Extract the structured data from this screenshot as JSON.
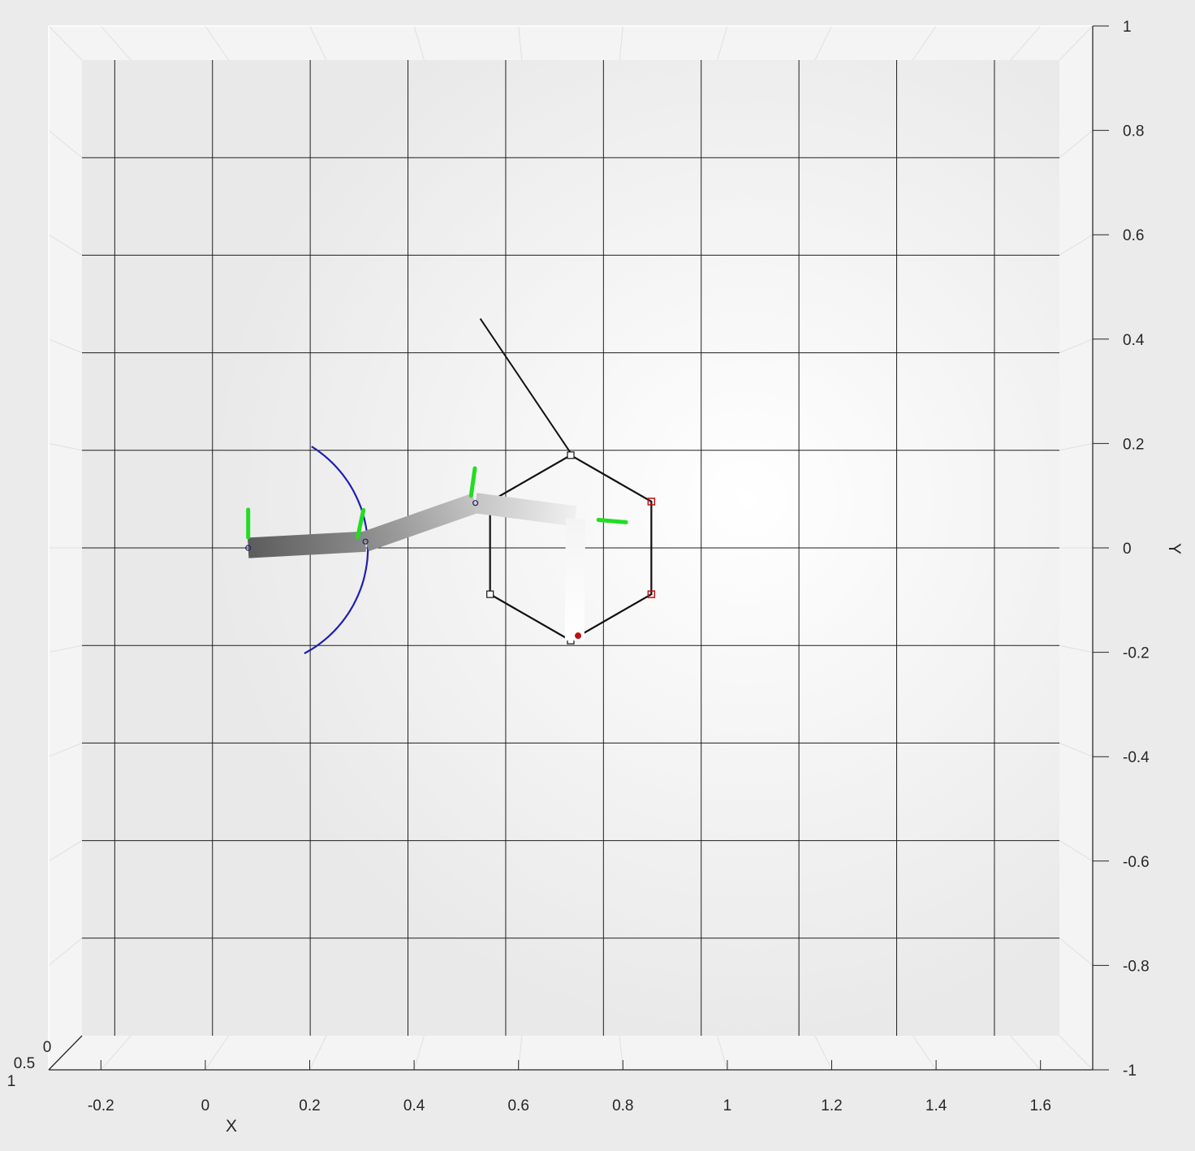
{
  "chart_data": {
    "type": "scatter",
    "title": "",
    "xlabel": "X",
    "ylabel": "Y",
    "xlim": [
      -0.3,
      1.7
    ],
    "ylim": [
      -1,
      1
    ],
    "zlim": [
      0,
      1
    ],
    "grid": true,
    "legend": "none",
    "x_ticks": [
      -0.2,
      0,
      0.2,
      0.4,
      0.6,
      0.8,
      1,
      1.2,
      1.4,
      1.6
    ],
    "x_tick_labels": [
      "-0.2",
      "0",
      "0.2",
      "0.4",
      "0.6",
      "0.8",
      "1",
      "1.2",
      "1.4",
      "1.6"
    ],
    "y_ticks": [
      1,
      0.8,
      0.6,
      0.4,
      0.2,
      0,
      -0.2,
      -0.4,
      -0.6,
      -0.8,
      -1
    ],
    "y_tick_labels": [
      "1",
      "0.8",
      "0.6",
      "0.4",
      "0.2",
      "0",
      "-0.2",
      "-0.4",
      "-0.6",
      "-0.8",
      "-1"
    ],
    "z_tick_labels": [
      "0",
      "0.5",
      "1"
    ],
    "floor_grid_x": [
      -0.233,
      -0.033,
      0.167,
      0.367,
      0.567,
      0.767,
      0.967,
      1.167,
      1.367,
      1.567
    ],
    "floor_grid_y": [
      0.8,
      0.6,
      0.4,
      0.2,
      0,
      -0.2,
      -0.4,
      -0.6,
      -0.8
    ],
    "arm_links": [
      {
        "x": [
          0.04,
          0.28
        ],
        "y": [
          0.0,
          0.013
        ],
        "width": 0.042,
        "color_start": "#5c5c5c",
        "color_end": "#8a8a8a"
      },
      {
        "x": [
          0.28,
          0.505
        ],
        "y": [
          0.013,
          0.092
        ],
        "width": 0.042,
        "color_start": "#8a8a8a",
        "color_end": "#c4c4c4"
      },
      {
        "x": [
          0.505,
          0.71
        ],
        "y": [
          0.092,
          0.065
        ],
        "width": 0.042,
        "color_start": "#c4c4c4",
        "color_end": "#f0f0f0"
      },
      {
        "x": [
          0.71,
          0.708
        ],
        "y": [
          0.06,
          -0.19
        ],
        "width": 0.04,
        "color_start": "#f4f4f4",
        "color_end": "#ffffff"
      }
    ],
    "arm_joints": [
      {
        "x": 0.04,
        "y": 0.0
      },
      {
        "x": 0.28,
        "y": 0.013
      },
      {
        "x": 0.505,
        "y": 0.092
      }
    ],
    "joint_markers": [
      {
        "x": 0.04,
        "y": 0.05,
        "angle_deg": 90
      },
      {
        "x": 0.27,
        "y": 0.05,
        "angle_deg": 78
      },
      {
        "x": 0.5,
        "y": 0.135,
        "angle_deg": 82
      },
      {
        "x": 0.785,
        "y": 0.055,
        "angle_deg": -5
      }
    ],
    "workspace_arc": {
      "cx": 0.04,
      "cy": 0.0,
      "r": 0.245,
      "start_deg": -62,
      "end_deg": 58,
      "color": "#1f1fb0"
    },
    "hexagon": [
      [
        0.7,
        0.19
      ],
      [
        0.865,
        0.095
      ],
      [
        0.865,
        -0.095
      ],
      [
        0.7,
        -0.19
      ],
      [
        0.535,
        -0.095
      ],
      [
        0.535,
        0.095
      ]
    ],
    "hexagon_red_vertices": [
      [
        0.865,
        0.095
      ],
      [
        0.865,
        -0.095
      ],
      [
        0.535,
        0.095
      ]
    ],
    "hexagon_black_vertices": [
      [
        0.7,
        0.19
      ],
      [
        0.535,
        -0.095
      ],
      [
        0.7,
        -0.19
      ]
    ],
    "pointer_line": {
      "x": [
        0.515,
        0.703
      ],
      "y": [
        0.47,
        0.19
      ]
    },
    "center_dot": {
      "x": 0.715,
      "y": -0.18
    }
  }
}
